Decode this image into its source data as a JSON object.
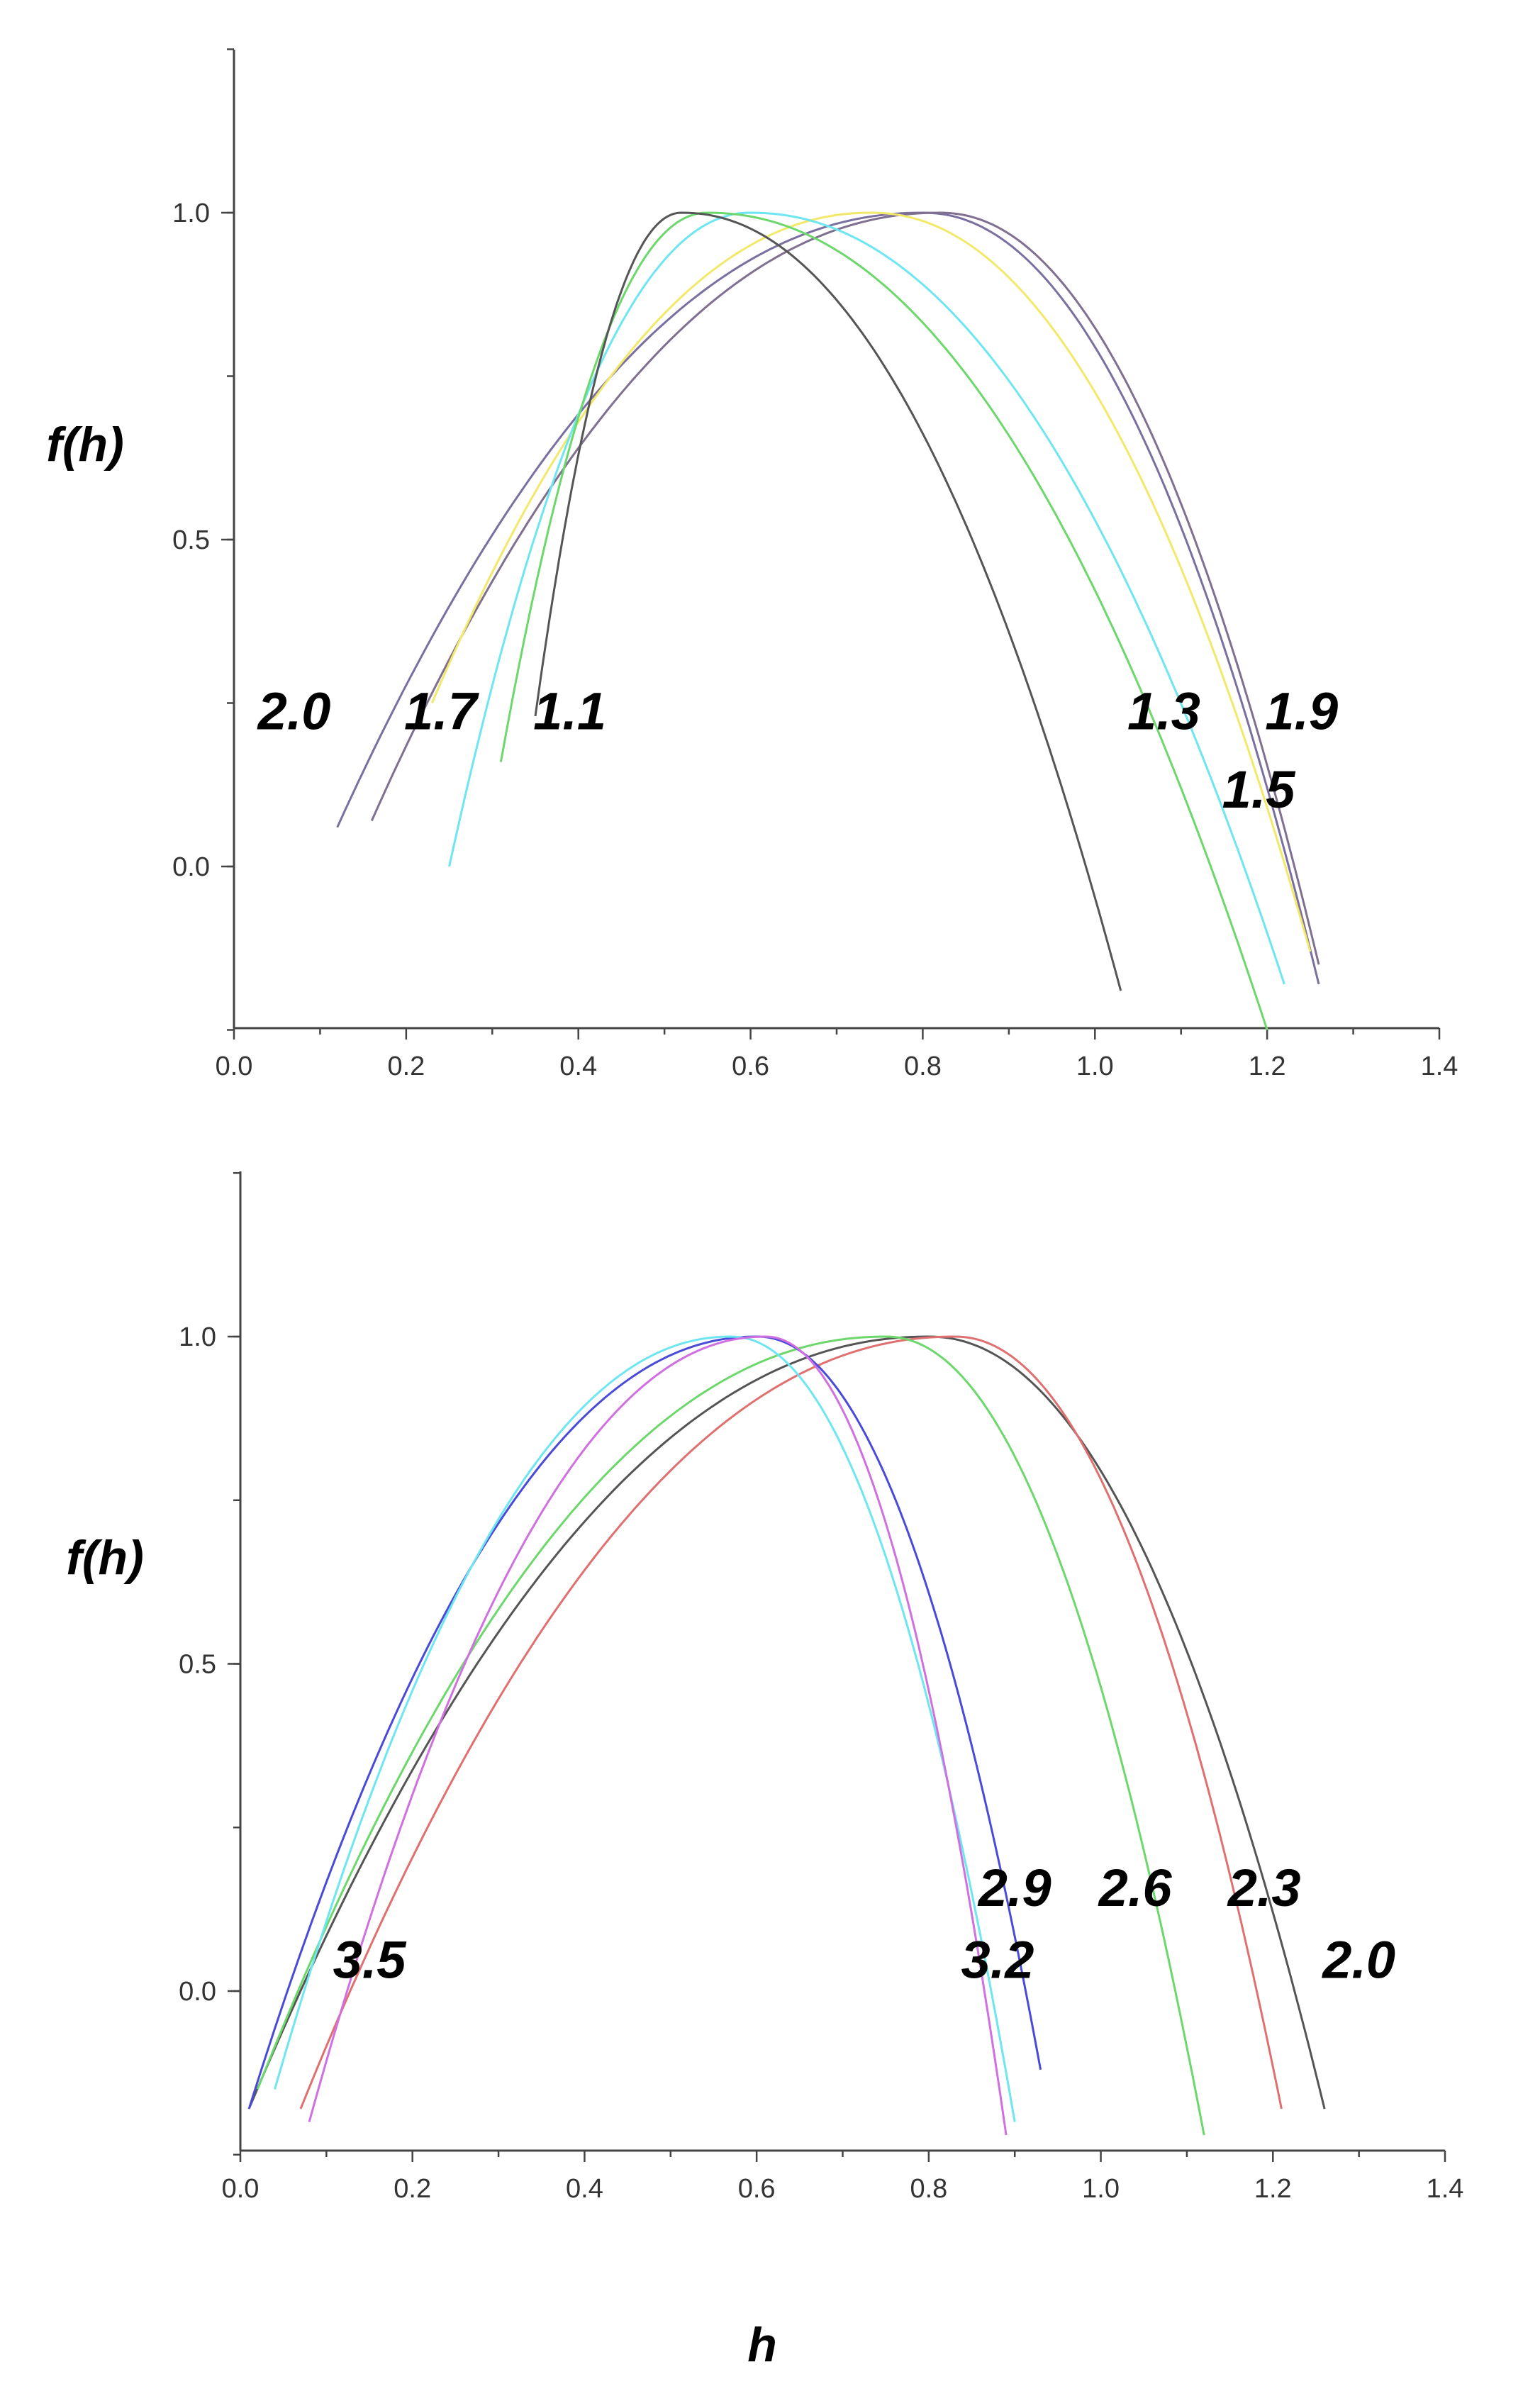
{
  "chart_data": [
    {
      "type": "line",
      "title": "",
      "xlabel": "",
      "ylabel": "f(h)",
      "xlim": [
        0.0,
        1.4
      ],
      "ylim": [
        -0.25,
        1.25
      ],
      "xticks": [
        "0.0",
        "0.2",
        "0.4",
        "0.6",
        "0.8",
        "1.0",
        "1.2",
        "1.4"
      ],
      "yticks": [
        "0.0",
        "0.5",
        "1.0"
      ],
      "grid": false,
      "series": [
        {
          "color": "#7a6fa0",
          "hmin": 0.12,
          "hpeak": 0.8,
          "hmax": 1.26,
          "fmin_left": 0.06,
          "fmin_right": -0.18
        },
        {
          "color": "#7f6f90",
          "hmin": 0.16,
          "hpeak": 0.82,
          "hmax": 1.26,
          "fmin_left": 0.07,
          "fmin_right": -0.15
        },
        {
          "color": "#f2e86a",
          "hmin": 0.23,
          "hpeak": 0.74,
          "hmax": 1.25,
          "fmin_left": 0.25,
          "fmin_right": -0.13
        },
        {
          "color": "#6ee6f2",
          "hmin": 0.25,
          "hpeak": 0.6,
          "hmax": 1.22,
          "fmin_left": 0.0,
          "fmin_right": -0.18
        },
        {
          "color": "#6cd86c",
          "hmin": 0.31,
          "hpeak": 0.55,
          "hmax": 1.2,
          "fmin_left": 0.16,
          "fmin_right": -0.25
        },
        {
          "color": "#555555",
          "hmin": 0.35,
          "hpeak": 0.52,
          "hmax": 1.03,
          "fmin_left": 0.23,
          "fmin_right": -0.19
        }
      ],
      "annotations": [
        {
          "text": "2.0",
          "x": 0.07,
          "y": 0.21
        },
        {
          "text": "1.7",
          "x": 0.24,
          "y": 0.21
        },
        {
          "text": "1.1",
          "x": 0.39,
          "y": 0.21
        },
        {
          "text": "1.3",
          "x": 1.08,
          "y": 0.21
        },
        {
          "text": "1.9",
          "x": 1.24,
          "y": 0.21
        },
        {
          "text": "1.5",
          "x": 1.19,
          "y": 0.09
        }
      ]
    },
    {
      "type": "line",
      "title": "",
      "xlabel": "h",
      "ylabel": "f(h)",
      "xlim": [
        0.0,
        1.4
      ],
      "ylim": [
        -0.25,
        1.25
      ],
      "xticks": [
        "0.0",
        "0.2",
        "0.4",
        "0.6",
        "0.8",
        "1.0",
        "1.2",
        "1.4"
      ],
      "yticks": [
        "0.0",
        "0.5",
        "1.0"
      ],
      "grid": false,
      "series": [
        {
          "color": "#555555",
          "hmin": 0.01,
          "hpeak": 0.8,
          "hmax": 1.26,
          "fmin_left": -0.18,
          "fmin_right": -0.18
        },
        {
          "color": "#e07070",
          "hmin": 0.07,
          "hpeak": 0.83,
          "hmax": 1.21,
          "fmin_left": -0.18,
          "fmin_right": -0.18
        },
        {
          "color": "#6cd86c",
          "hmin": 0.02,
          "hpeak": 0.75,
          "hmax": 1.12,
          "fmin_left": -0.15,
          "fmin_right": -0.22
        },
        {
          "color": "#4a4ad8",
          "hmin": 0.01,
          "hpeak": 0.6,
          "hmax": 0.93,
          "fmin_left": -0.18,
          "fmin_right": -0.12
        },
        {
          "color": "#6ee6f2",
          "hmin": 0.04,
          "hpeak": 0.57,
          "hmax": 0.9,
          "fmin_left": -0.15,
          "fmin_right": -0.2
        },
        {
          "color": "#d070e0",
          "hmin": 0.08,
          "hpeak": 0.61,
          "hmax": 0.89,
          "fmin_left": -0.2,
          "fmin_right": -0.22
        }
      ],
      "annotations": [
        {
          "text": "3.5",
          "x": 0.15,
          "y": 0.02
        },
        {
          "text": "2.9",
          "x": 0.9,
          "y": 0.13
        },
        {
          "text": "3.2",
          "x": 0.88,
          "y": 0.02
        },
        {
          "text": "2.6",
          "x": 1.04,
          "y": 0.13
        },
        {
          "text": "2.3",
          "x": 1.19,
          "y": 0.13
        },
        {
          "text": "2.0",
          "x": 1.3,
          "y": 0.02
        }
      ]
    }
  ]
}
